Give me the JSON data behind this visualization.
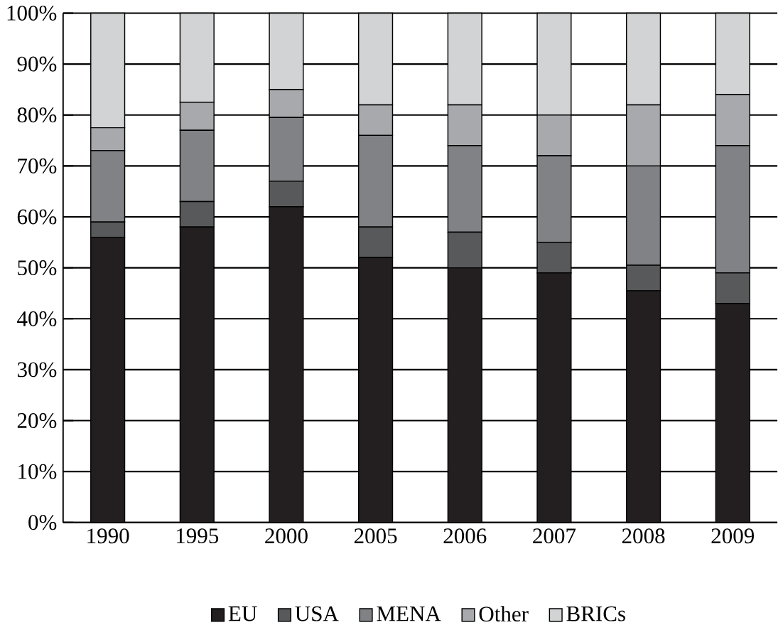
{
  "chart_data": {
    "type": "bar",
    "stacked": true,
    "categories": [
      "1990",
      "1995",
      "2000",
      "2005",
      "2006",
      "2007",
      "2008",
      "2009"
    ],
    "series": [
      {
        "name": "EU",
        "color": "#231f20",
        "values": [
          56,
          58,
          62,
          52,
          50,
          49,
          45.5,
          43
        ]
      },
      {
        "name": "USA",
        "color": "#58595b",
        "values": [
          3,
          5,
          5,
          6,
          7,
          6,
          5,
          6
        ]
      },
      {
        "name": "MENA",
        "color": "#808285",
        "values": [
          14,
          14,
          12.5,
          18,
          17,
          17,
          19.5,
          25
        ]
      },
      {
        "name": "Other",
        "color": "#a7a9ac",
        "values": [
          4.5,
          5.5,
          5.5,
          6,
          8,
          8,
          12,
          10
        ]
      },
      {
        "name": "BRICs",
        "color": "#d1d3d4",
        "values": [
          22.5,
          17.5,
          15,
          18,
          18,
          20,
          18,
          16
        ]
      }
    ],
    "ylim": [
      0,
      100
    ],
    "yticks": [
      {
        "value": 0,
        "label": "0%"
      },
      {
        "value": 10,
        "label": "10%"
      },
      {
        "value": 20,
        "label": "20%"
      },
      {
        "value": 30,
        "label": "30%"
      },
      {
        "value": 40,
        "label": "40%"
      },
      {
        "value": 50,
        "label": "50%"
      },
      {
        "value": 60,
        "label": "60%"
      },
      {
        "value": 70,
        "label": "70%"
      },
      {
        "value": 80,
        "label": "80%"
      },
      {
        "value": 90,
        "label": "90%"
      },
      {
        "value": 100,
        "label": "100%"
      }
    ],
    "grid": "y",
    "legend": "bottom"
  }
}
